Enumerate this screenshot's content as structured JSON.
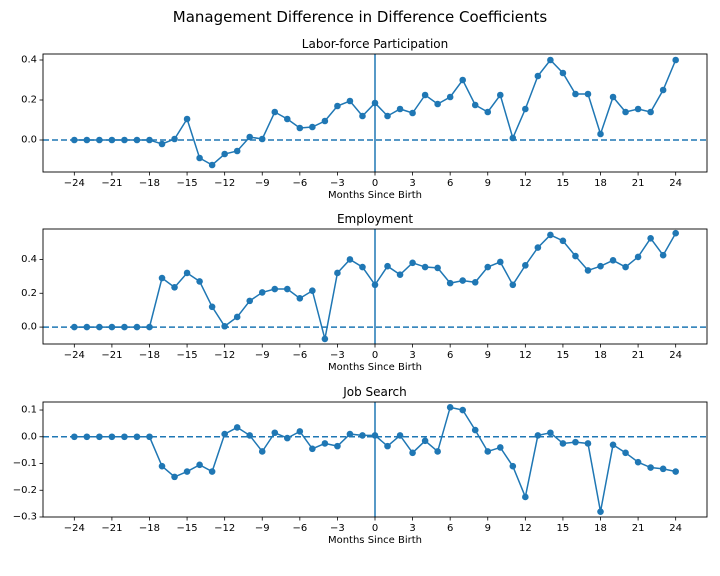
{
  "figure": {
    "title": "Management Difference in Difference Coefficients"
  },
  "chart_data": [
    {
      "type": "line",
      "title": "Labor-force Participation",
      "xlabel": "Months Since Birth",
      "ylabel": "",
      "xlim": [
        -26.5,
        26.5
      ],
      "ylim": [
        -0.16,
        0.43
      ],
      "xticks": [
        -24,
        -21,
        -18,
        -15,
        -12,
        -9,
        -6,
        -3,
        0,
        3,
        6,
        9,
        12,
        15,
        18,
        21,
        24
      ],
      "yticks": [
        0.0,
        0.2,
        0.4
      ],
      "ytick_labels": [
        "0.0",
        "0.2",
        "0.4"
      ],
      "reference_lines": {
        "horizontal_dashed_y": 0,
        "vertical_solid_x": 0
      },
      "color": "#1f77b4",
      "x": [
        -24,
        -23,
        -22,
        -21,
        -20,
        -19,
        -18,
        -17,
        -16,
        -15,
        -14,
        -13,
        -12,
        -11,
        -10,
        -9,
        -8,
        -7,
        -6,
        -5,
        -4,
        -3,
        -2,
        -1,
        0,
        1,
        2,
        3,
        4,
        5,
        6,
        7,
        8,
        9,
        10,
        11,
        12,
        13,
        14,
        15,
        16,
        17,
        18,
        19,
        20,
        21,
        22,
        23,
        24
      ],
      "y": [
        0,
        0,
        0,
        0,
        0,
        0,
        0,
        -0.02,
        0.005,
        0.105,
        -0.09,
        -0.125,
        -0.07,
        -0.055,
        0.015,
        0.005,
        0.14,
        0.105,
        0.06,
        0.065,
        0.095,
        0.17,
        0.195,
        0.12,
        0.185,
        0.12,
        0.155,
        0.135,
        0.225,
        0.18,
        0.215,
        0.3,
        0.175,
        0.14,
        0.225,
        0.01,
        0.155,
        0.32,
        0.4,
        0.335,
        0.23,
        0.23,
        0.03,
        0.215,
        0.14,
        0.155,
        0.14,
        0.25,
        0.4
      ]
    },
    {
      "type": "line",
      "title": "Employment",
      "xlabel": "Months Since Birth",
      "ylabel": "",
      "xlim": [
        -26.5,
        26.5
      ],
      "ylim": [
        -0.1,
        0.58
      ],
      "xticks": [
        -24,
        -21,
        -18,
        -15,
        -12,
        -9,
        -6,
        -3,
        0,
        3,
        6,
        9,
        12,
        15,
        18,
        21,
        24
      ],
      "yticks": [
        0.0,
        0.2,
        0.4
      ],
      "ytick_labels": [
        "0.0",
        "0.2",
        "0.4"
      ],
      "reference_lines": {
        "horizontal_dashed_y": 0,
        "vertical_solid_x": 0
      },
      "color": "#1f77b4",
      "x": [
        -24,
        -23,
        -22,
        -21,
        -20,
        -19,
        -18,
        -17,
        -16,
        -15,
        -14,
        -13,
        -12,
        -11,
        -10,
        -9,
        -8,
        -7,
        -6,
        -5,
        -4,
        -3,
        -2,
        -1,
        0,
        1,
        2,
        3,
        4,
        5,
        6,
        7,
        8,
        9,
        10,
        11,
        12,
        13,
        14,
        15,
        16,
        17,
        18,
        19,
        20,
        21,
        22,
        23,
        24
      ],
      "y": [
        0,
        0,
        0,
        0,
        0,
        0,
        0,
        0.29,
        0.235,
        0.32,
        0.27,
        0.12,
        0.005,
        0.06,
        0.155,
        0.205,
        0.225,
        0.225,
        0.17,
        0.215,
        -0.07,
        0.32,
        0.4,
        0.355,
        0.25,
        0.36,
        0.31,
        0.38,
        0.355,
        0.35,
        0.26,
        0.275,
        0.265,
        0.355,
        0.385,
        0.25,
        0.365,
        0.47,
        0.545,
        0.51,
        0.42,
        0.335,
        0.36,
        0.395,
        0.355,
        0.415,
        0.525,
        0.425,
        0.555
      ]
    },
    {
      "type": "line",
      "title": "Job Search",
      "xlabel": "Months Since Birth",
      "ylabel": "",
      "xlim": [
        -26.5,
        26.5
      ],
      "ylim": [
        -0.3,
        0.13
      ],
      "xticks": [
        -24,
        -21,
        -18,
        -15,
        -12,
        -9,
        -6,
        -3,
        0,
        3,
        6,
        9,
        12,
        15,
        18,
        21,
        24
      ],
      "yticks": [
        -0.3,
        -0.2,
        -0.1,
        0.0,
        0.1
      ],
      "ytick_labels": [
        "−0.3",
        "−0.2",
        "−0.1",
        "0.0",
        "0.1"
      ],
      "reference_lines": {
        "horizontal_dashed_y": 0,
        "vertical_solid_x": 0
      },
      "color": "#1f77b4",
      "x": [
        -24,
        -23,
        -22,
        -21,
        -20,
        -19,
        -18,
        -17,
        -16,
        -15,
        -14,
        -13,
        -12,
        -11,
        -10,
        -9,
        -8,
        -7,
        -6,
        -5,
        -4,
        -3,
        -2,
        -1,
        0,
        1,
        2,
        3,
        4,
        5,
        6,
        7,
        8,
        9,
        10,
        11,
        12,
        13,
        14,
        15,
        16,
        17,
        18,
        19,
        20,
        21,
        22,
        23,
        24
      ],
      "y": [
        0,
        0,
        0,
        0,
        0,
        0,
        0,
        -0.11,
        -0.15,
        -0.13,
        -0.105,
        -0.13,
        0.01,
        0.035,
        0.005,
        -0.055,
        0.015,
        -0.005,
        0.02,
        -0.045,
        -0.025,
        -0.035,
        0.01,
        0.005,
        0.005,
        -0.035,
        0.005,
        -0.06,
        -0.015,
        -0.055,
        0.11,
        0.1,
        0.025,
        -0.055,
        -0.04,
        -0.11,
        -0.225,
        0.005,
        0.015,
        -0.025,
        -0.02,
        -0.025,
        -0.28,
        -0.03,
        -0.06,
        -0.095,
        -0.115,
        -0.12,
        -0.13
      ]
    }
  ]
}
